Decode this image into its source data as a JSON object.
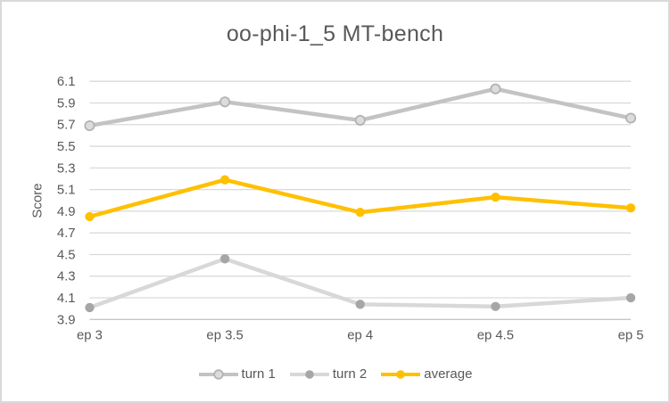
{
  "chart_data": {
    "type": "line",
    "title": "oo-phi-1_5 MT-bench",
    "xlabel": "",
    "ylabel": "Score",
    "categories": [
      "ep 3",
      "ep 3.5",
      "ep 4",
      "ep 4.5",
      "ep 5"
    ],
    "series": [
      {
        "name": "turn 1",
        "values": [
          5.69,
          5.91,
          5.74,
          6.03,
          5.76
        ],
        "color": "#c3c3c3",
        "marker": "open-circle",
        "marker_fill": "#dcdcdc",
        "marker_stroke": "#b3b3b3"
      },
      {
        "name": "turn 2",
        "values": [
          4.01,
          4.46,
          4.04,
          4.02,
          4.1
        ],
        "color": "#d8d8d8",
        "marker": "solid-circle",
        "marker_fill": "#a6a6a6",
        "marker_stroke": "#a6a6a6"
      },
      {
        "name": "average",
        "values": [
          4.85,
          5.19,
          4.89,
          5.03,
          4.93
        ],
        "color": "#ffc000",
        "marker": "solid-circle",
        "marker_fill": "#ffc000",
        "marker_stroke": "#ffc000"
      }
    ],
    "ylim": [
      3.9,
      6.1
    ],
    "ytick_step": 0.2,
    "y_ticks": [
      "3.9",
      "4.1",
      "4.3",
      "4.5",
      "4.7",
      "4.9",
      "5.1",
      "5.3",
      "5.5",
      "5.7",
      "5.9",
      "6.1"
    ],
    "grid": "horizontal gridlines on",
    "legend_position": "bottom",
    "colors": {
      "gridline": "#d9d9d9",
      "axis_line": "#c6c6c6",
      "axis_text": "#595959",
      "title_text": "#595959",
      "canvas_border": "#d9d9d9",
      "background": "#ffffff"
    }
  }
}
